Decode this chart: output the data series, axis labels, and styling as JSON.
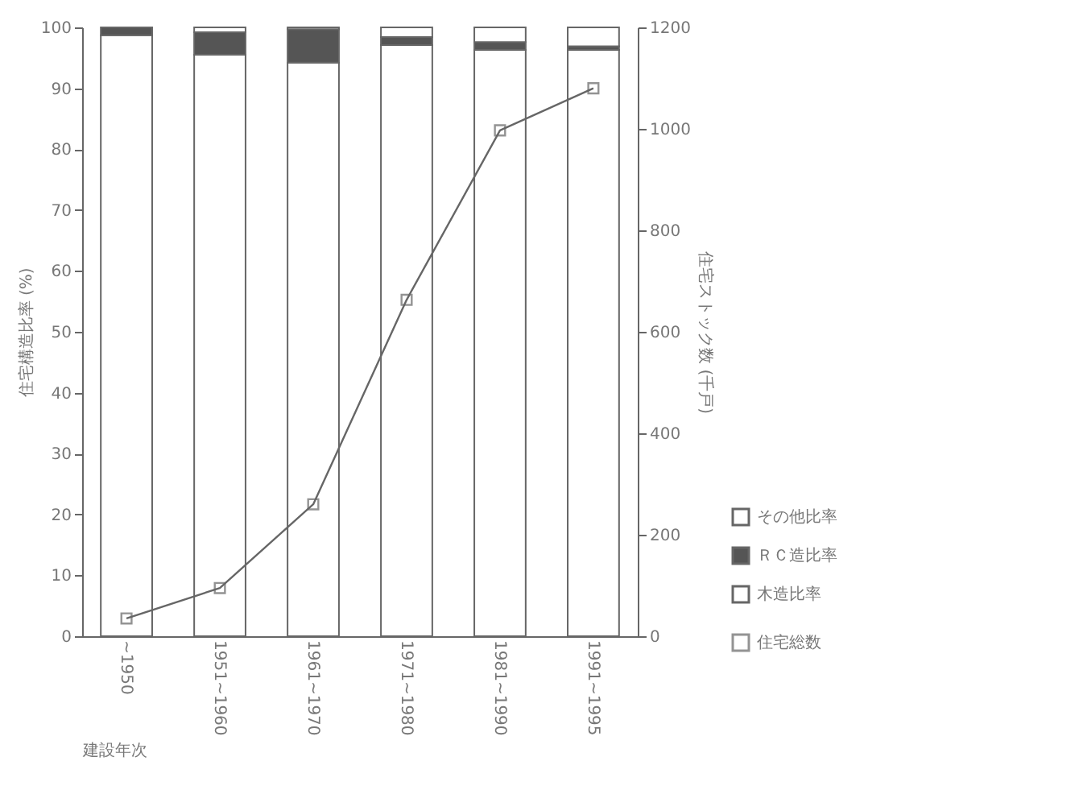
{
  "chart_data": {
    "type": "bar",
    "stacked": true,
    "xlabel": "建設年次",
    "ylabel": "住宅構造比率 (%)",
    "y2label": "住宅ストック数 (千戸)",
    "categories": [
      "~1950",
      "1951~1960",
      "1961~1970",
      "1971~1980",
      "1981~1990",
      "1991~1995"
    ],
    "series": [
      {
        "name": "木造比率",
        "color": "#ffffff",
        "values": [
          98.7,
          95.5,
          94.2,
          97.1,
          96.3,
          96.3
        ]
      },
      {
        "name": "ＲＣ造比率",
        "color": "#555555",
        "values": [
          1.3,
          3.7,
          5.5,
          1.3,
          1.3,
          0.6
        ]
      },
      {
        "name": "その他比率",
        "color": "#ffffff",
        "values": [
          null,
          0.8,
          0.3,
          1.6,
          2.4,
          3.1
        ]
      },
      {
        "name": "住宅総数",
        "type": "line",
        "axis": "y2",
        "color": "#666666",
        "marker": "square",
        "values": [
          35,
          95,
          260,
          663,
          997,
          1080
        ]
      }
    ],
    "ylim": [
      0,
      100
    ],
    "yticks": [
      0,
      10,
      20,
      30,
      40,
      50,
      60,
      70,
      80,
      90,
      100
    ],
    "y2lim": [
      0,
      1200
    ],
    "y2ticks": [
      0,
      200,
      400,
      600,
      800,
      {
        "value": 1000,
        "label": "1000"
      },
      {
        "value": 1200,
        "label": "1200"
      }
    ],
    "legend": "bottom right"
  }
}
